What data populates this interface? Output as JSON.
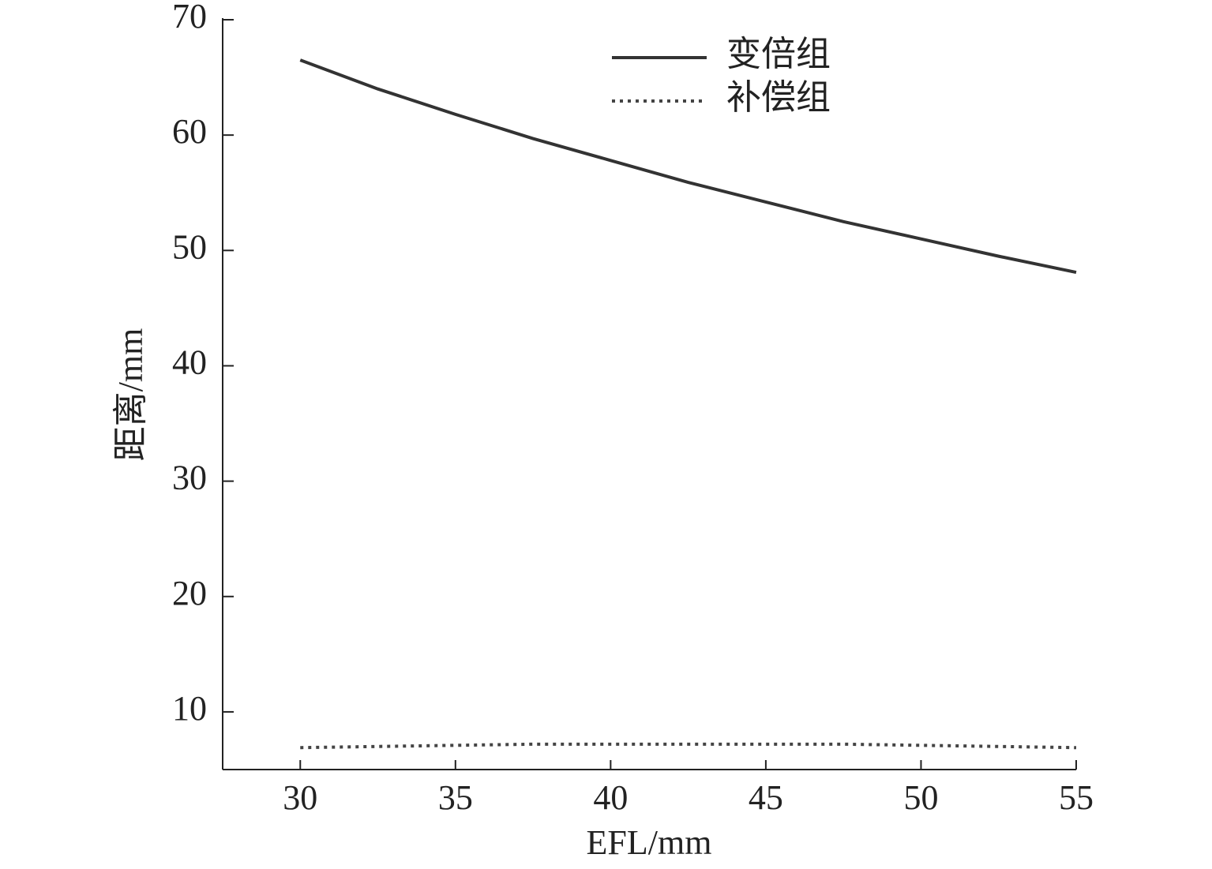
{
  "chart_data": {
    "type": "line",
    "x_label": "EFL/mm",
    "y_label": "距离/mm",
    "x": [
      30,
      32.5,
      35,
      37.5,
      40,
      42.5,
      45,
      47.5,
      50,
      52.5,
      55
    ],
    "series": [
      {
        "name": "变倍组",
        "color": "#333333",
        "style": "solid",
        "values": [
          66.5,
          64.0,
          61.8,
          59.7,
          57.8,
          55.9,
          54.2,
          52.5,
          51.0,
          49.5,
          48.1
        ]
      },
      {
        "name": "补偿组",
        "color": "#444444",
        "style": "dotted",
        "values": [
          6.9,
          7.0,
          7.1,
          7.2,
          7.2,
          7.2,
          7.2,
          7.2,
          7.1,
          7.0,
          6.9
        ]
      }
    ],
    "xlim": [
      27.5,
      55
    ],
    "ylim": [
      5,
      70
    ],
    "xticks": [
      30,
      35,
      40,
      45,
      50,
      55
    ],
    "yticks": [
      10,
      20,
      30,
      40,
      50,
      60,
      70
    ],
    "legend": "top-center",
    "grid": false
  }
}
